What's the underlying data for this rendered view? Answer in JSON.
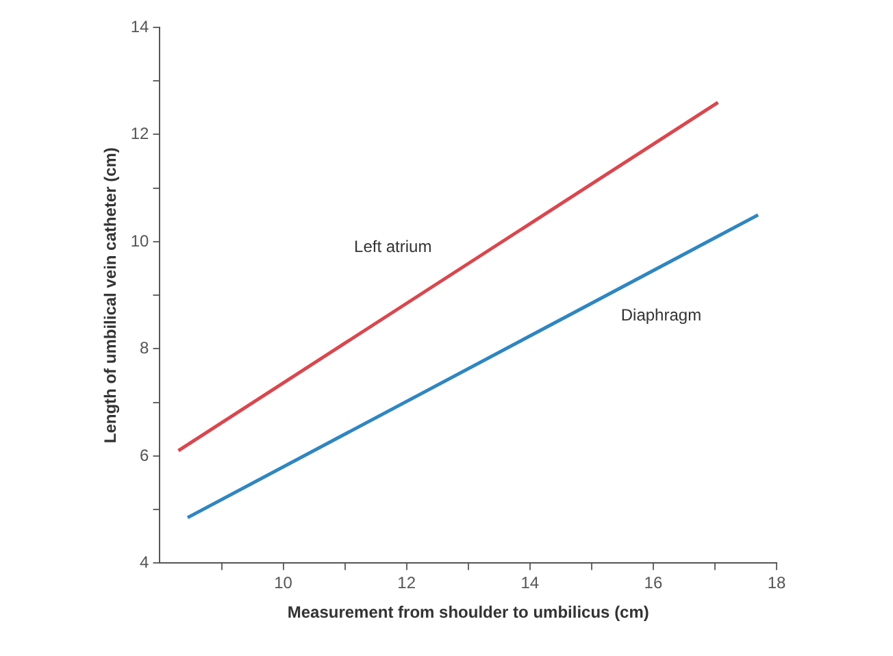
{
  "chart_data": {
    "type": "line",
    "xlabel": "Measurement from shoulder to umbilicus (cm)",
    "ylabel": "Length of umbilical vein catheter (cm)",
    "xlim": [
      8,
      18
    ],
    "ylim": [
      4,
      14
    ],
    "xticks": [
      {
        "value": 9,
        "label": null
      },
      10,
      {
        "value": 11,
        "label": null
      },
      12,
      {
        "value": 13,
        "label": null
      },
      14,
      {
        "value": 15,
        "label": null
      },
      16,
      {
        "value": 17,
        "label": null
      },
      18
    ],
    "yticks": [
      4,
      {
        "value": 5,
        "label": null
      },
      6,
      {
        "value": 7,
        "label": null
      },
      8,
      {
        "value": 9,
        "label": null
      },
      10,
      {
        "value": 11,
        "label": null
      },
      12,
      {
        "value": 13,
        "label": null
      },
      14
    ],
    "series": [
      {
        "name": "Left atrium",
        "color": "#d9474f",
        "x": [
          8.3,
          17.05
        ],
        "values": [
          6.1,
          12.6
        ]
      },
      {
        "name": "Diaphragm",
        "color": "#2f86c0",
        "x": [
          8.45,
          17.7
        ],
        "values": [
          4.85,
          10.5
        ]
      }
    ],
    "marker": "none",
    "line_style": "solid",
    "legend": false
  }
}
